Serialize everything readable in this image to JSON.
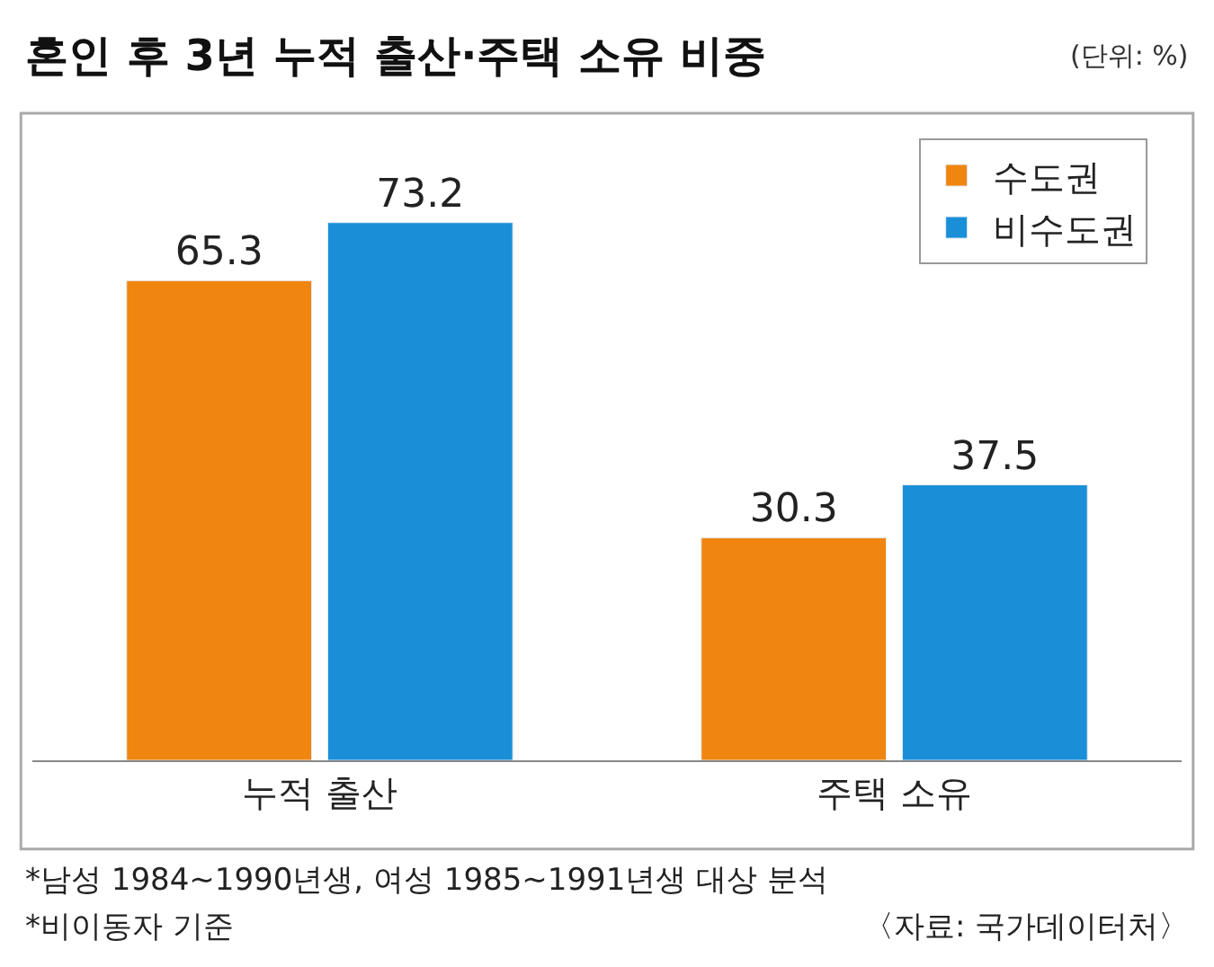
{
  "chart_data": {
    "type": "bar",
    "title": "혼인 후 3년 누적 출산·주택 소유 비중",
    "subtitle": "(단위: %)",
    "categories": [
      "누적 출산",
      "주택 소유"
    ],
    "series": [
      {
        "name": "수도권",
        "color": "#f0850f",
        "values": [
          65.3,
          30.3
        ]
      },
      {
        "name": "비수도권",
        "color": "#1a8fd8",
        "values": [
          73.2,
          37.5
        ]
      }
    ],
    "data_labels": true,
    "legend": "top right",
    "annotations": [
      "*남성 1984~1990년생, 여성 1985~1991년생 대상 분석",
      "*비이동자 기준",
      "〈자료: 국가데이터처〉"
    ]
  }
}
